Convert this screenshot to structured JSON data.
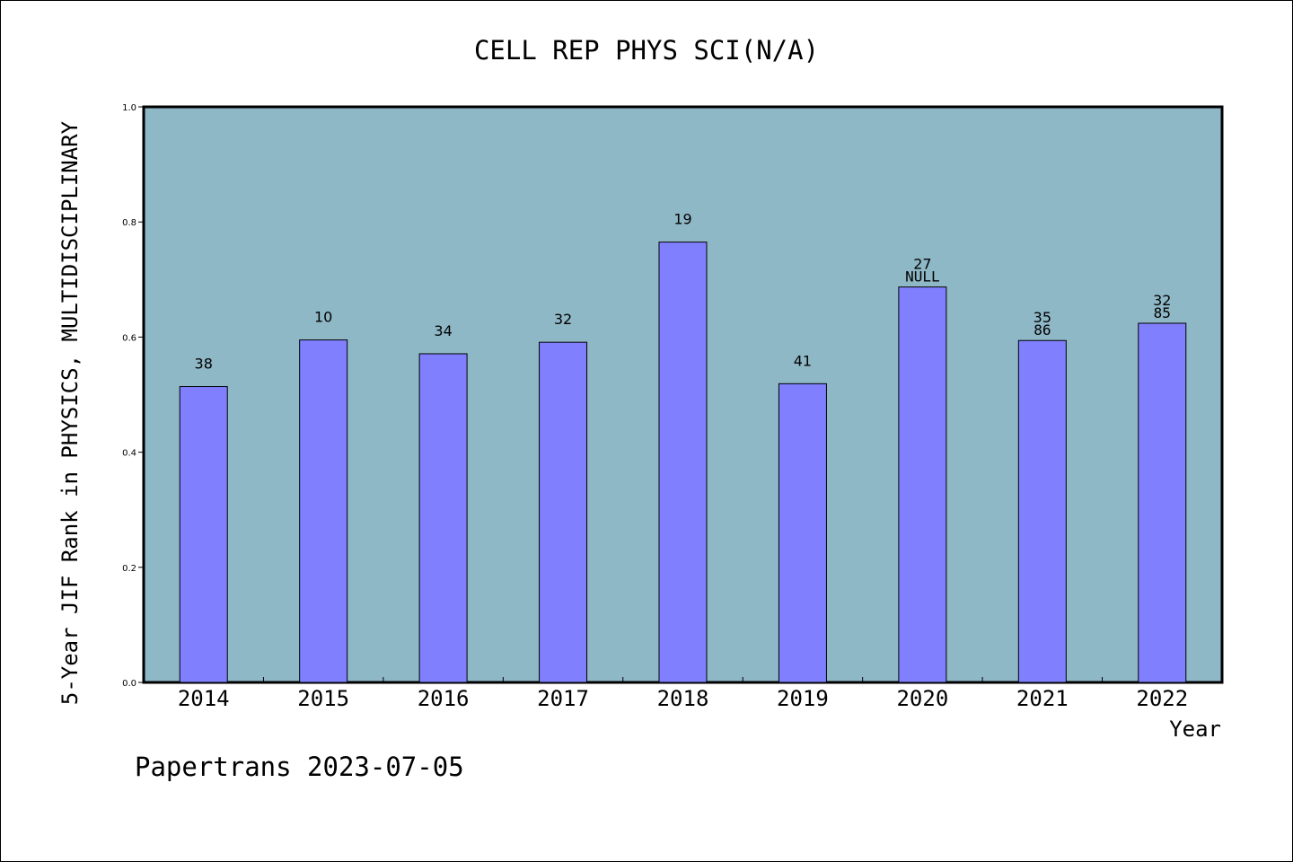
{
  "chart_data": {
    "type": "bar",
    "title": "CELL REP PHYS SCI(N/A)",
    "xlabel": "Year",
    "ylabel": "5-Year JIF Rank in PHYSICS, MULTIDISCIPLINARY",
    "ylim": [
      0,
      1.0
    ],
    "yticks": [
      "0.0",
      "0.2",
      "0.4",
      "0.6",
      "0.8",
      "1.0"
    ],
    "ytick_values": [
      0,
      0.2,
      0.4,
      0.6,
      0.8,
      1.0
    ],
    "categories": [
      "2014",
      "2015",
      "2016",
      "2017",
      "2018",
      "2019",
      "2020",
      "2021",
      "2022"
    ],
    "values": [
      0.514,
      0.595,
      0.571,
      0.591,
      0.765,
      0.519,
      0.687,
      0.594,
      0.624
    ],
    "labels_top": [
      "38",
      "10",
      "34",
      "32",
      "19",
      "41",
      "27",
      "35",
      "32"
    ],
    "labels_bottom": [
      "",
      "",
      "",
      "",
      "",
      "",
      "NULL",
      "86",
      "85"
    ],
    "grid": false,
    "colors": {
      "plot_background": "#8fb8c7",
      "bar_fill": "#8080ff",
      "bar_stroke": "#000000"
    }
  },
  "footer": "Papertrans 2023-07-05"
}
